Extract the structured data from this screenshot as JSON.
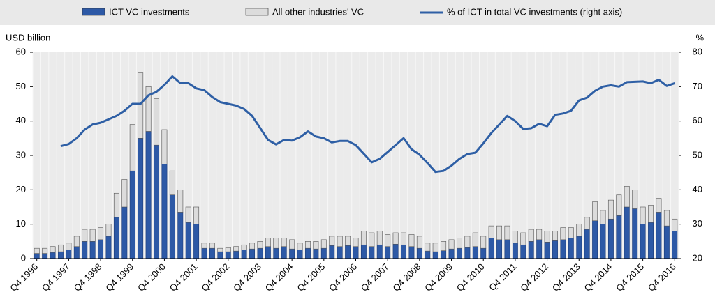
{
  "chart_data": {
    "type": "bar-line",
    "ylabel": "USD billion",
    "y2label": "%",
    "categories": [
      "Q4 1996",
      null,
      null,
      null,
      "Q4 1997",
      null,
      null,
      null,
      "Q4 1998",
      null,
      null,
      null,
      "Q4 1999",
      null,
      null,
      null,
      "Q4 2000",
      null,
      null,
      null,
      "Q4 2001",
      null,
      null,
      null,
      "Q4 2002",
      null,
      null,
      null,
      "Q4 2003",
      null,
      null,
      null,
      "Q4 2004",
      null,
      null,
      null,
      "Q4 2005",
      null,
      null,
      null,
      "Q4 2006",
      null,
      null,
      null,
      "Q4 2007",
      null,
      null,
      null,
      "Q4 2008",
      null,
      null,
      null,
      "Q4 2009",
      null,
      null,
      null,
      "Q4 2010",
      null,
      null,
      null,
      "Q4 2011",
      null,
      null,
      null,
      "Q4 2012",
      null,
      null,
      null,
      "Q4 2013",
      null,
      null,
      null,
      "Q4 2014",
      null,
      null,
      null,
      "Q4 2015",
      null,
      null,
      null,
      "Q4 2016"
    ],
    "series": [
      {
        "name": "ICT VC investments",
        "color": "#2d59a6",
        "kind": "bar",
        "values": [
          1.5,
          1.5,
          1.8,
          2,
          2.5,
          3.5,
          5,
          5,
          5.5,
          6.5,
          12,
          15,
          25.5,
          35,
          37,
          33,
          27.5,
          18.5,
          13.5,
          10.5,
          10,
          3,
          3,
          2,
          2,
          2.2,
          2.5,
          2.8,
          3,
          3.5,
          3,
          3.5,
          2.8,
          2.5,
          3,
          2.8,
          3,
          3.8,
          3.5,
          3.8,
          3.5,
          4,
          3.5,
          4,
          3.5,
          4.2,
          4,
          3.5,
          3,
          2.2,
          2,
          2.3,
          2.8,
          3,
          3.2,
          3.5,
          3,
          6,
          5.5,
          5.5,
          4.5,
          4,
          5,
          5.5,
          4.8,
          5.2,
          5.5,
          6,
          6.5,
          8.5,
          11,
          10,
          11.5,
          12.5,
          15,
          14.5,
          10,
          10.5,
          13.5,
          9.5,
          8
        ]
      },
      {
        "name": "All other industries' VC",
        "color": "#dcdcdc",
        "kind": "bar",
        "values": [
          1.5,
          1.5,
          1.7,
          2,
          2,
          3,
          3.5,
          3.5,
          3.5,
          3.5,
          7,
          8,
          13.5,
          19,
          13,
          13.5,
          10,
          7,
          6.5,
          4.5,
          5,
          1.5,
          1.5,
          1,
          1.2,
          1.3,
          1.5,
          1.7,
          2,
          2.5,
          3,
          2.5,
          2.7,
          2,
          2,
          2.2,
          2.5,
          2.7,
          3,
          2.7,
          2.5,
          4,
          4,
          4,
          3.5,
          3.3,
          3.5,
          3.5,
          3.5,
          2.3,
          2.5,
          2.7,
          2.7,
          3,
          3.3,
          4,
          3.5,
          3.5,
          4,
          4,
          3.5,
          3.5,
          3.5,
          3,
          3.2,
          2.8,
          3.5,
          3,
          3.5,
          3.5,
          5.5,
          4,
          5.5,
          6,
          6,
          5.5,
          5,
          5,
          4,
          4.5,
          3.5
        ]
      },
      {
        "name": "% of ICT in total VC investments (right axis)",
        "color": "#2e5fa5",
        "kind": "line",
        "axis": "y2",
        "values": [
          null,
          null,
          null,
          52.7,
          53.3,
          55,
          57.5,
          59,
          59.5,
          60.5,
          61.5,
          63,
          65,
          65,
          67.5,
          68.5,
          70.5,
          73,
          71,
          71,
          69.5,
          69,
          67,
          65.5,
          65,
          64.5,
          63.5,
          61.5,
          58,
          54.5,
          53.2,
          54.5,
          54.3,
          55.3,
          57,
          55.5,
          55,
          53.8,
          54.2,
          54.2,
          53,
          50.5,
          48,
          49,
          51,
          53,
          55,
          51.8,
          50.2,
          47.8,
          45.2,
          45.5,
          47,
          49,
          50.4,
          50.8,
          53.5,
          56.5,
          59,
          61.5,
          60,
          57.7,
          57.9,
          59.2,
          58.5,
          61.8,
          62.2,
          63,
          66,
          66.8,
          68.8,
          70,
          70.4,
          70,
          71.3,
          71.4,
          71.5,
          71,
          72,
          70.2,
          71
        ]
      }
    ],
    "ylim": [
      0,
      60
    ],
    "yticks": [
      0,
      10,
      20,
      30,
      40,
      50,
      60
    ],
    "y2lim": [
      20,
      80
    ],
    "y2ticks": [
      20,
      30,
      40,
      50,
      60,
      70,
      80
    ],
    "legend": "top"
  }
}
